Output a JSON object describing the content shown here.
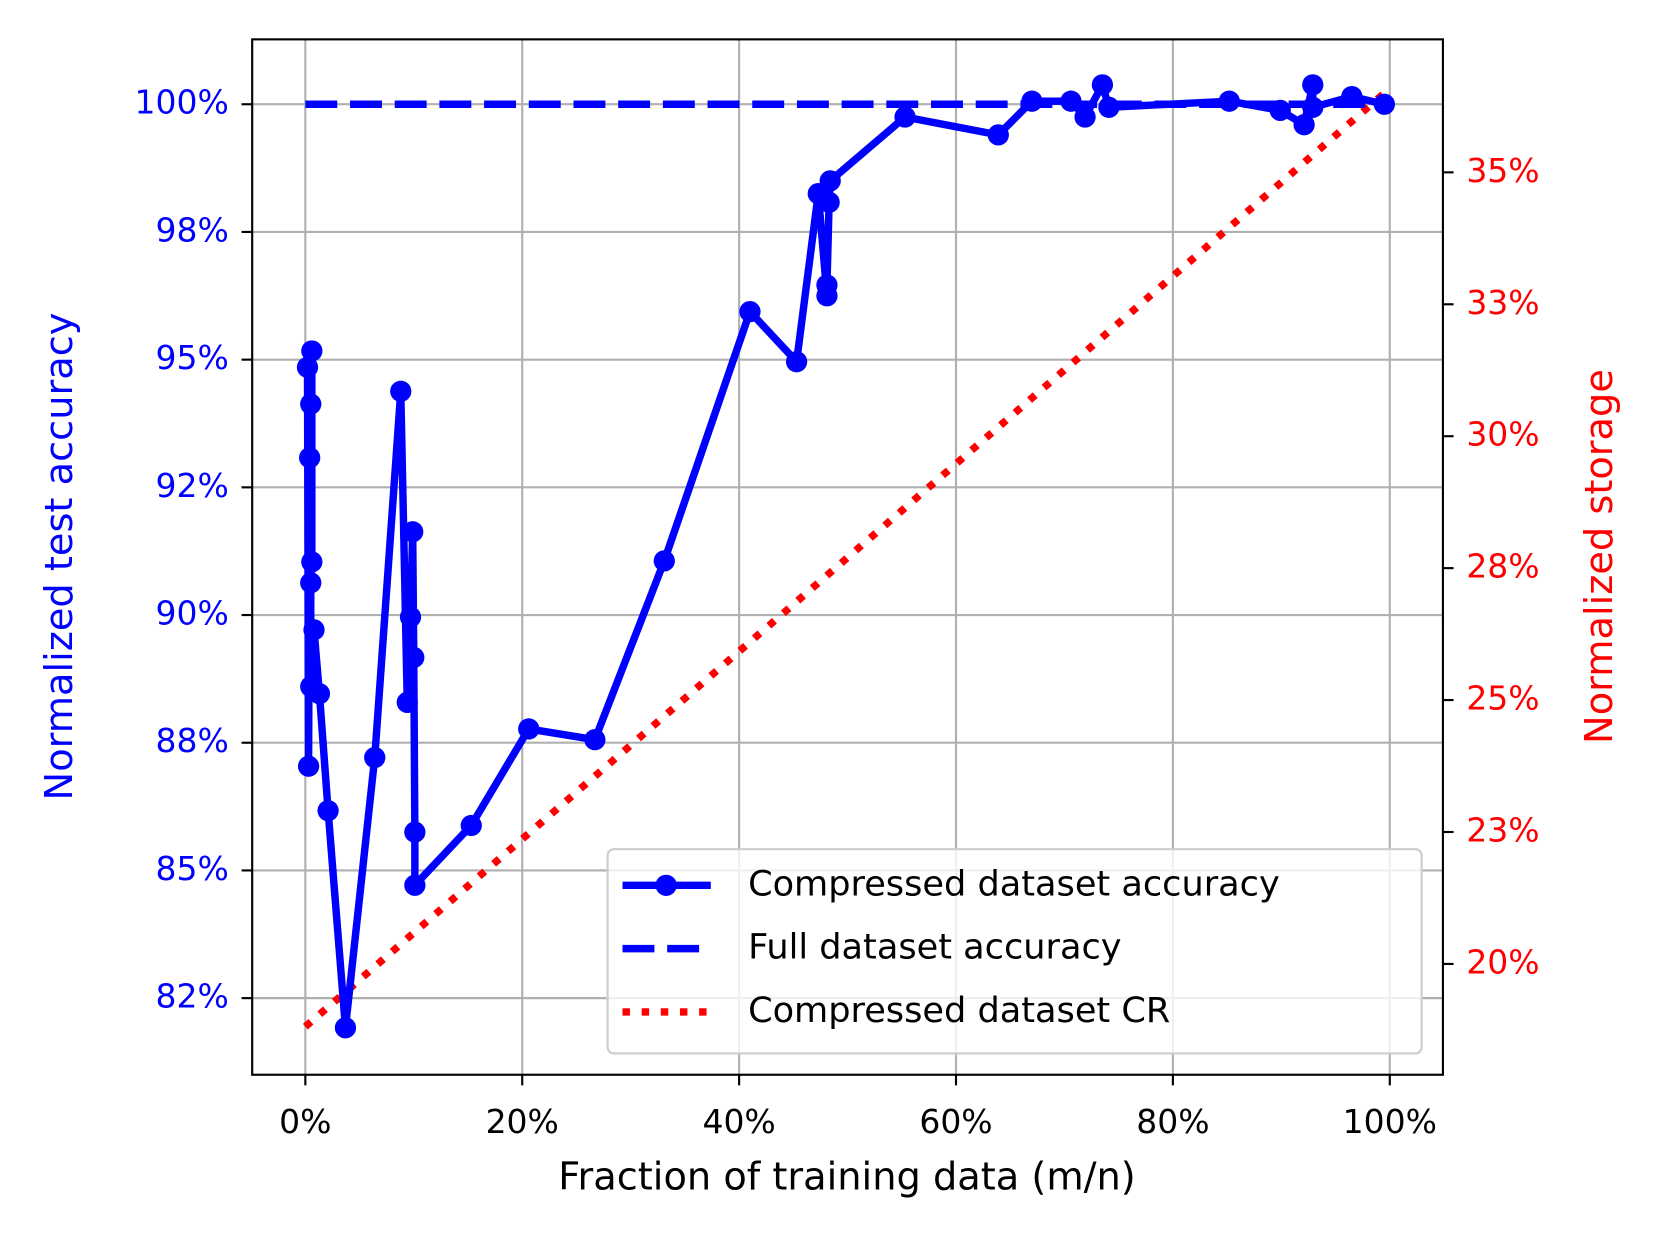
{
  "chart_data": {
    "type": "line",
    "xlabel": "Fraction of training data (m/n)",
    "ylabel": "Normalized test accuracy",
    "y2label": "Normalized storage",
    "xlim": [
      -4.9,
      104.9
    ],
    "xticks": [
      {
        "value": 0,
        "label": "0%"
      },
      {
        "value": 20,
        "label": "20%"
      },
      {
        "value": 40,
        "label": "40%"
      },
      {
        "value": 60,
        "label": "60%"
      },
      {
        "value": 80,
        "label": "80%"
      },
      {
        "value": 100,
        "label": "100%"
      }
    ],
    "ylim": [
      81.0,
      101.27
    ],
    "yticks": [
      {
        "value": 82.5,
        "label": "82%"
      },
      {
        "value": 85,
        "label": "85%"
      },
      {
        "value": 87.5,
        "label": "88%"
      },
      {
        "value": 90,
        "label": "90%"
      },
      {
        "value": 92.5,
        "label": "92%"
      },
      {
        "value": 95,
        "label": "95%"
      },
      {
        "value": 97.5,
        "label": "98%"
      },
      {
        "value": 100,
        "label": "100%"
      }
    ],
    "y2lim": [
      17.9,
      37.52
    ],
    "y2ticks": [
      {
        "value": 20,
        "label": "20%"
      },
      {
        "value": 22.5,
        "label": "23%"
      },
      {
        "value": 25,
        "label": "25%"
      },
      {
        "value": 27.5,
        "label": "28%"
      },
      {
        "value": 30,
        "label": "30%"
      },
      {
        "value": 32.5,
        "label": "33%"
      },
      {
        "value": 35,
        "label": "35%"
      }
    ],
    "grid": true,
    "legend": "lower right",
    "series": [
      {
        "name": "Compressed dataset accuracy",
        "color": "#0000ff",
        "linestyle": "solid",
        "marker": true,
        "x": [
          0.2,
          0.3,
          0.4,
          0.5,
          0.6,
          0.6,
          0.5,
          0.5,
          0.8,
          1.3,
          2.1,
          3.7,
          6.4,
          8.8,
          9.4,
          9.7,
          9.9,
          10.0,
          10.1,
          10.1,
          15.3,
          20.6,
          26.7,
          33.1,
          41.0,
          45.3,
          47.3,
          48.1,
          48.1,
          48.3,
          48.4,
          55.3,
          63.9,
          67.0,
          70.6,
          71.9,
          73.5,
          74.1,
          85.2,
          89.9,
          92.1,
          92.9,
          92.9,
          96.5,
          99.5
        ],
        "values": [
          94.85,
          87.04,
          93.08,
          94.13,
          95.17,
          91.04,
          90.63,
          88.6,
          89.71,
          88.46,
          86.17,
          81.92,
          87.21,
          94.38,
          88.29,
          89.96,
          91.63,
          89.17,
          85.75,
          84.71,
          85.88,
          87.77,
          87.56,
          91.06,
          95.94,
          94.96,
          98.25,
          96.25,
          96.46,
          98.08,
          98.5,
          99.75,
          99.4,
          100.06,
          100.06,
          99.75,
          100.38,
          99.94,
          100.06,
          99.88,
          99.6,
          100.38,
          99.94,
          100.15,
          100.0
        ]
      },
      {
        "name": "Full dataset accuracy",
        "color": "#0000ff",
        "linestyle": "dashed",
        "marker": false,
        "x": [
          0,
          100
        ],
        "values": [
          100,
          100
        ]
      },
      {
        "name": "Compressed dataset CR",
        "color": "#ff0000",
        "linestyle": "dotted",
        "marker": false,
        "axis": "y2",
        "x": [
          0,
          100
        ],
        "values": [
          18.81,
          36.59
        ]
      }
    ]
  }
}
